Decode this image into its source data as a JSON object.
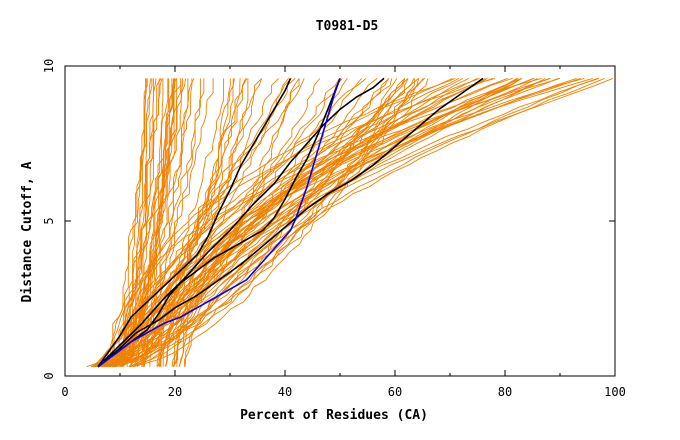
{
  "chart_data": {
    "type": "line",
    "title": "T0981-D5",
    "xlabel": "Percent of Residues (CA)",
    "ylabel": "Distance Cutoff, A",
    "xlim": [
      0,
      100
    ],
    "ylim": [
      0,
      10
    ],
    "xticks": [
      "0",
      "20",
      "40",
      "60",
      "80",
      "100"
    ],
    "yticks": [
      "0",
      "5",
      "10"
    ],
    "grid": false,
    "legend": "none",
    "colors": {
      "others": "#f08000",
      "highlight": "#000000",
      "best": "#0000ff",
      "axes": "#000000"
    },
    "series": [
      {
        "color": "black",
        "x": [
          6,
          8,
          10,
          12,
          15,
          18,
          21,
          24,
          26,
          28,
          30,
          32,
          34,
          36,
          38,
          40,
          41
        ],
        "y": [
          0.3,
          0.8,
          1.3,
          1.9,
          2.4,
          2.9,
          3.4,
          3.9,
          4.5,
          5.3,
          6.0,
          6.8,
          7.4,
          8.0,
          8.6,
          9.2,
          9.6
        ]
      },
      {
        "color": "black",
        "x": [
          6,
          10,
          14,
          18,
          22,
          26,
          30,
          34,
          38,
          41,
          44,
          47,
          50,
          53,
          56,
          58
        ],
        "y": [
          0.3,
          1.0,
          1.7,
          2.5,
          3.2,
          4.0,
          4.7,
          5.5,
          6.2,
          6.9,
          7.5,
          8.1,
          8.6,
          9.0,
          9.3,
          9.6
        ]
      },
      {
        "color": "black",
        "x": [
          6,
          9,
          12,
          15,
          17,
          19,
          21,
          24,
          27,
          30,
          33,
          36,
          38,
          40,
          42,
          44,
          46,
          48,
          50
        ],
        "y": [
          0.3,
          0.7,
          1.1,
          1.5,
          2.0,
          2.6,
          3.0,
          3.4,
          3.8,
          4.1,
          4.4,
          4.7,
          5.1,
          5.7,
          6.4,
          7.0,
          7.8,
          8.7,
          9.6
        ]
      },
      {
        "color": "black",
        "x": [
          6,
          10,
          13,
          17,
          20,
          24,
          28,
          32,
          36,
          40,
          44,
          48,
          52,
          56,
          60,
          64,
          68,
          72,
          76
        ],
        "y": [
          0.3,
          0.9,
          1.4,
          1.8,
          2.2,
          2.6,
          3.1,
          3.6,
          4.2,
          4.8,
          5.4,
          5.9,
          6.3,
          6.8,
          7.4,
          8.0,
          8.6,
          9.1,
          9.6
        ]
      },
      {
        "color": "blue",
        "x": [
          6,
          9,
          12,
          15,
          18,
          21,
          24,
          27,
          30,
          33,
          35,
          37,
          39,
          41,
          42,
          43,
          44,
          45,
          46,
          47,
          48,
          49,
          50
        ],
        "y": [
          0.3,
          0.7,
          1.1,
          1.4,
          1.7,
          1.9,
          2.2,
          2.5,
          2.8,
          3.1,
          3.5,
          3.9,
          4.3,
          4.7,
          5.1,
          5.6,
          6.1,
          6.7,
          7.3,
          7.9,
          8.5,
          9.1,
          9.6
        ]
      }
    ]
  }
}
